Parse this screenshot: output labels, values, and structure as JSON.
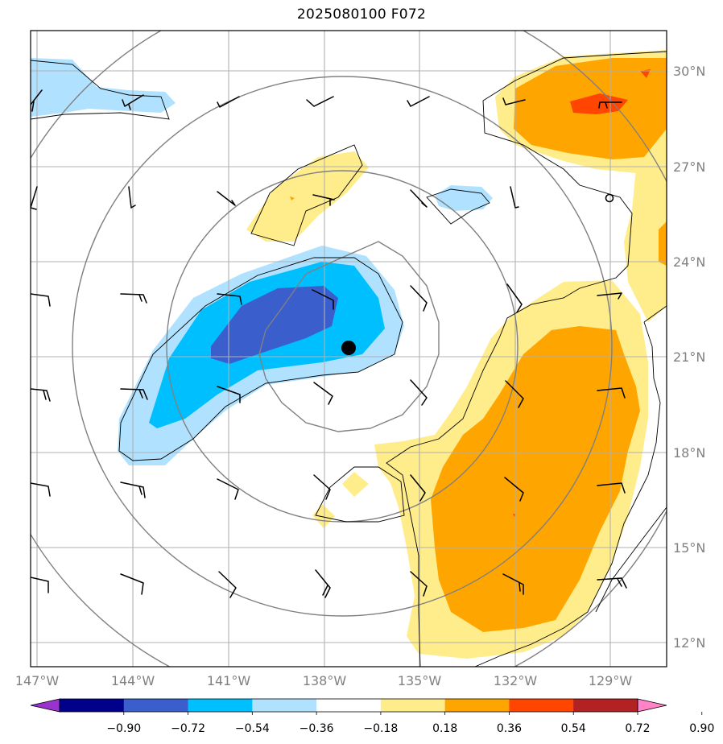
{
  "title": "2025080100 F072",
  "lat_labels": [
    "30°N",
    "27°N",
    "24°N",
    "21°N",
    "18°N",
    "15°N",
    "12°N"
  ],
  "lon_labels": [
    "147°W",
    "144°W",
    "141°W",
    "138°W",
    "135°W",
    "132°W",
    "129°W"
  ],
  "colorbar": {
    "ticks": [
      "−0.90",
      "−0.72",
      "−0.54",
      "−0.36",
      "−0.18",
      "0.18",
      "0.36",
      "0.54",
      "0.72",
      "0.90"
    ],
    "colors": [
      "#9a32cd",
      "#00008b",
      "#3a5fcd",
      "#00bfff",
      "#b0e2ff",
      "#ffffff",
      "#ffec8b",
      "#ffa500",
      "#ff4500",
      "#b22222",
      "#ff83c6"
    ]
  },
  "storm_center": {
    "lon": -137.2,
    "lat": 21.3
  },
  "colors": {
    "grid": "#b0b0b0",
    "rings": "#808080",
    "coast": "#000000"
  }
}
